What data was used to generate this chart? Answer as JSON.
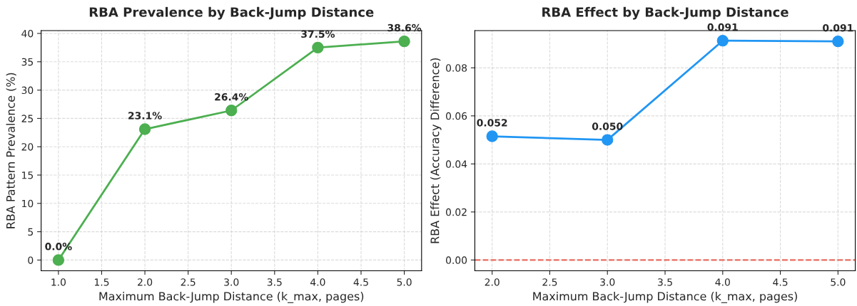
{
  "chart_data": [
    {
      "type": "line",
      "title": "RBA Prevalence by Back-Jump Distance",
      "xlabel": "Maximum Back-Jump Distance (k_max, pages)",
      "ylabel": "RBA Pattern Prevalence (%)",
      "x": [
        1.0,
        2.0,
        3.0,
        4.0,
        5.0
      ],
      "series": [
        {
          "color": "#4caf50",
          "values": [
            0.0,
            23.1,
            26.4,
            37.5,
            38.6
          ],
          "value_labels": [
            "0.0%",
            "23.1%",
            "26.4%",
            "37.5%",
            "38.6%"
          ]
        }
      ],
      "xlim": [
        0.8,
        5.2
      ],
      "xticks": [
        {
          "value": 1.0,
          "label": "1.0"
        },
        {
          "value": 1.5,
          "label": "1.5"
        },
        {
          "value": 2.0,
          "label": "2.0"
        },
        {
          "value": 2.5,
          "label": "2.5"
        },
        {
          "value": 3.0,
          "label": "3.0"
        },
        {
          "value": 3.5,
          "label": "3.5"
        },
        {
          "value": 4.0,
          "label": "4.0"
        },
        {
          "value": 4.5,
          "label": "4.5"
        },
        {
          "value": 5.0,
          "label": "5.0"
        }
      ],
      "ylim": [
        -1.9,
        40.5
      ],
      "yticks": [
        0,
        5,
        10,
        15,
        20,
        25,
        30,
        35,
        40
      ],
      "grid": true,
      "marker": "circle",
      "line_style": "solid"
    },
    {
      "type": "line",
      "title": "RBA Effect by Back-Jump Distance",
      "xlabel": "Maximum Back-Jump Distance (k_max, pages)",
      "ylabel": "RBA Effect (Accuracy Difference)",
      "x": [
        2.0,
        3.0,
        4.0,
        5.0
      ],
      "series": [
        {
          "color": "#2196f3",
          "values": [
            0.0515,
            0.05,
            0.0913,
            0.091
          ],
          "value_labels": [
            "0.052",
            "0.050",
            "0.091",
            "0.091"
          ]
        }
      ],
      "xlim": [
        1.85,
        5.15
      ],
      "xticks": [
        {
          "value": 2.0,
          "label": "2.0"
        },
        {
          "value": 2.5,
          "label": "2.5"
        },
        {
          "value": 3.0,
          "label": "3.0"
        },
        {
          "value": 3.5,
          "label": "3.5"
        },
        {
          "value": 4.0,
          "label": "4.0"
        },
        {
          "value": 4.5,
          "label": "4.5"
        },
        {
          "value": 5.0,
          "label": "5.0"
        }
      ],
      "ylim": [
        -0.0045,
        0.0955
      ],
      "yticks": [
        {
          "value": 0,
          "label": "0.00"
        },
        {
          "value": 0.02,
          "label": "0.02"
        },
        {
          "value": 0.04,
          "label": "0.04"
        },
        {
          "value": 0.06,
          "label": "0.06"
        },
        {
          "value": 0.08,
          "label": "0.08"
        }
      ],
      "ref_lines": [
        {
          "axis": "y",
          "value": 0,
          "color": "#e74c3c",
          "line_style": "dashed"
        }
      ],
      "grid": true,
      "marker": "circle",
      "line_style": "solid"
    }
  ]
}
